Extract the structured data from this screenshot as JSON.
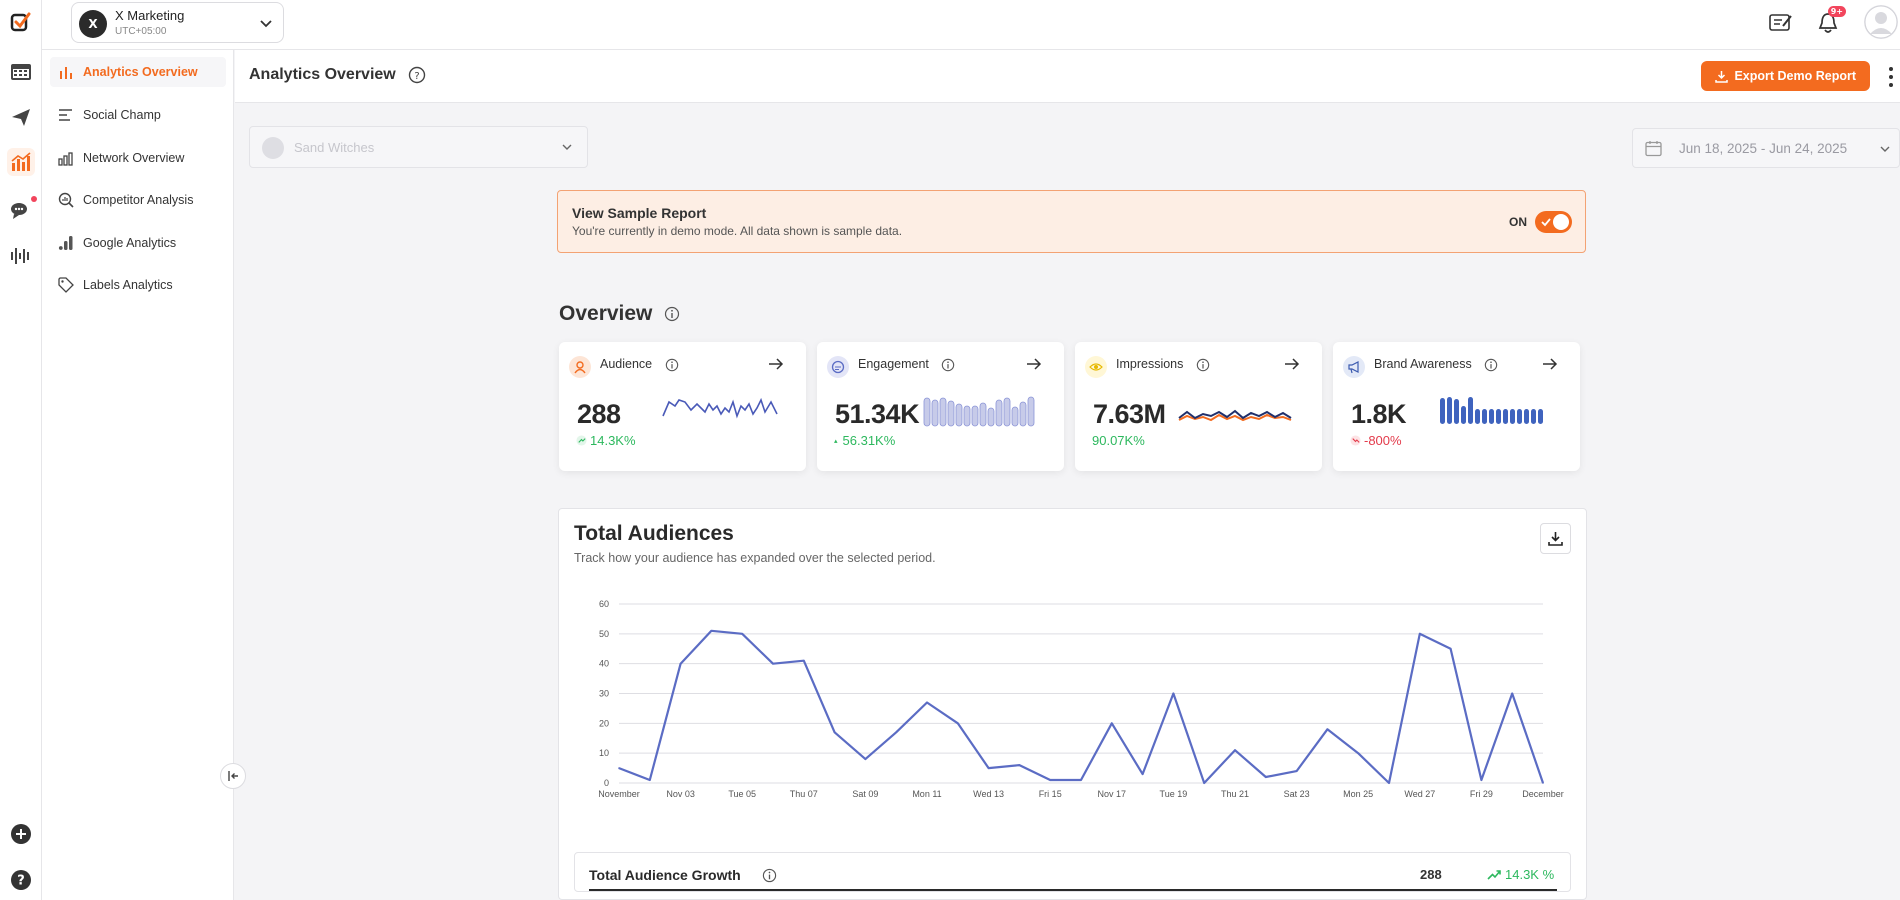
{
  "account": {
    "name": "X Marketing",
    "timezone": "UTC+05:00",
    "initial": "X"
  },
  "notifications": {
    "badge": "9+"
  },
  "sidebar": {
    "items": [
      {
        "label": "Analytics Overview"
      },
      {
        "label": "Social Champ"
      },
      {
        "label": "Network Overview"
      },
      {
        "label": "Competitor Analysis"
      },
      {
        "label": "Google Analytics"
      },
      {
        "label": "Labels Analytics"
      }
    ]
  },
  "header": {
    "title": "Analytics Overview",
    "export_label": "Export Demo Report"
  },
  "filters": {
    "profile_placeholder": "Sand Witches",
    "date_range": "Jun 18, 2025 - Jun 24, 2025"
  },
  "sample_report": {
    "title": "View Sample Report",
    "subtitle": "You're currently in demo mode. All data shown is sample data.",
    "toggle_label": "ON"
  },
  "overview": {
    "title": "Overview",
    "cards": [
      {
        "label": "Audience",
        "value": "288",
        "change": "14.3K%",
        "trend": "up"
      },
      {
        "label": "Engagement",
        "value": "51.34K",
        "change": "56.31K%",
        "trend": "up"
      },
      {
        "label": "Impressions",
        "value": "7.63M",
        "change": "90.07K%",
        "trend": "up"
      },
      {
        "label": "Brand Awareness",
        "value": "1.8K",
        "change": "-800%",
        "trend": "down"
      }
    ]
  },
  "total_audiences": {
    "title": "Total Audiences",
    "subtitle": "Track how your audience has expanded over the selected period.",
    "growth_label": "Total Audience Growth",
    "growth_value": "288",
    "growth_change": "14.3K %"
  },
  "chart_data": {
    "type": "line",
    "title": "",
    "xlabel": "",
    "ylabel": "",
    "ylim": [
      0,
      60
    ],
    "yticks": [
      0,
      10,
      20,
      30,
      40,
      50,
      60
    ],
    "x_tick_labels": [
      "November",
      "Nov 03",
      "Tue 05",
      "Thu 07",
      "Sat 09",
      "Mon 11",
      "Wed 13",
      "Fri 15",
      "Nov 17",
      "Tue 19",
      "Thu 21",
      "Sat 23",
      "Mon 25",
      "Wed 27",
      "Fri 29",
      "December"
    ],
    "series": [
      {
        "values": [
          5,
          1,
          40,
          51,
          50,
          40,
          41,
          17,
          8,
          17,
          27,
          20,
          5,
          6,
          1,
          1,
          20,
          3,
          30,
          0,
          11,
          2,
          4,
          18,
          10,
          0,
          50,
          45,
          1,
          30,
          0
        ]
      }
    ],
    "grid": true,
    "colors": {
      "line": "#5b6cc4"
    }
  },
  "colors": {
    "accent": "#f36b1f",
    "positive": "#2db85e",
    "negative": "#e33b4b"
  }
}
